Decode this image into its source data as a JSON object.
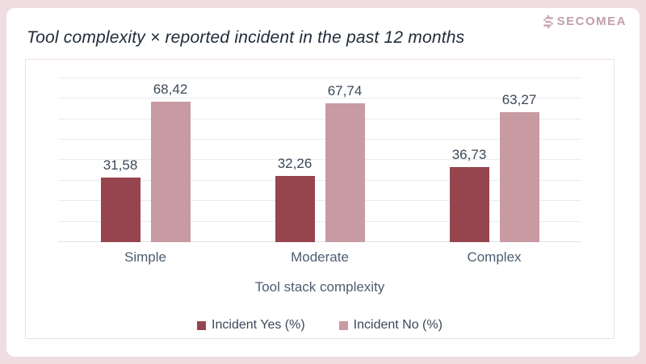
{
  "page": {
    "background_color": "#eedde1",
    "card_color": "#ffffff"
  },
  "header": {
    "title": "Tool complexity × reported incident in the past 12 months",
    "title_color": "#1f2a37",
    "logo_text": "SECOMEA",
    "logo_icon": "secomea-pixel-s-icon",
    "logo_color": "#c2a0a8"
  },
  "chart_data": {
    "type": "bar",
    "title": "Tool complexity × reported incident in the past 12 months",
    "categories": [
      "Simple",
      "Moderate",
      "Complex"
    ],
    "series": [
      {
        "name": "Incident Yes (%)",
        "color": "#96454f",
        "values": [
          31.58,
          32.26,
          36.73
        ],
        "value_labels": [
          "31,58",
          "32,26",
          "36,73"
        ]
      },
      {
        "name": "Incident No (%)",
        "color": "#c89aa2",
        "values": [
          68.42,
          67.74,
          63.27
        ],
        "value_labels": [
          "68,42",
          "67,74",
          "63,27"
        ]
      }
    ],
    "xlabel": "Tool stack complexity",
    "ylabel": "",
    "ylim": [
      0,
      89
    ],
    "gridline_step": 10,
    "grid": true,
    "y_axis_labels_visible": false,
    "legend_position": "bottom",
    "decimal_separator": "comma",
    "text_color": "#4d5d70",
    "value_label_color": "#3c4858",
    "gridline_color": "#e9ecef"
  }
}
